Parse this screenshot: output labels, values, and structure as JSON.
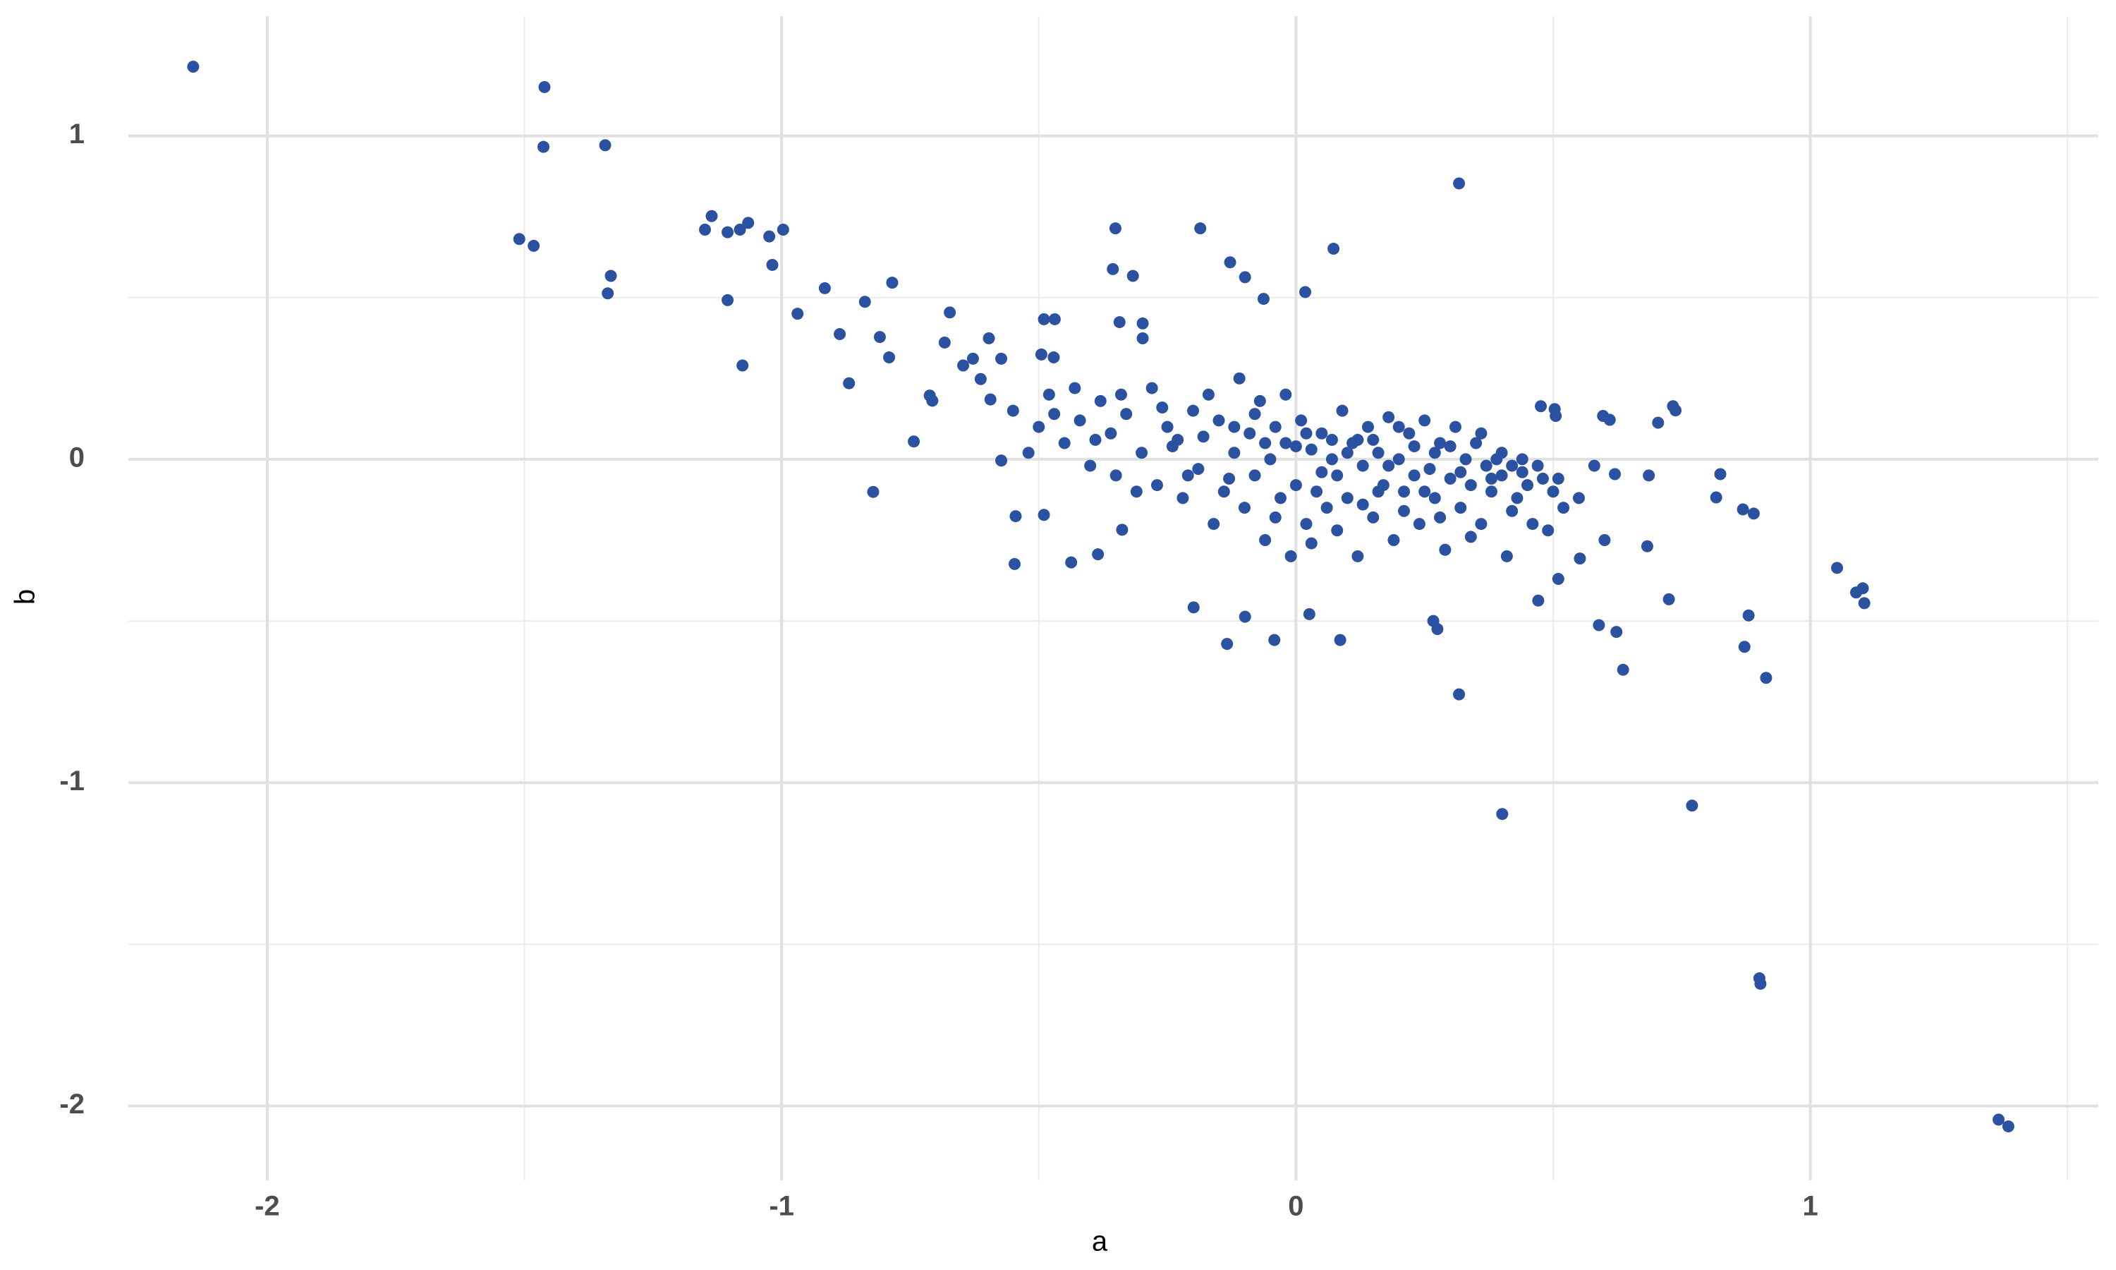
{
  "chart_data": {
    "type": "scatter",
    "x_label": "a",
    "y_label": "b",
    "color": "#2b52a0",
    "grid": true,
    "xlim": [
      -2.27,
      1.56
    ],
    "ylim": [
      -2.23,
      1.37
    ],
    "xticks": [
      -2,
      -1,
      0,
      1
    ],
    "yticks": [
      -2,
      -1,
      0,
      1
    ],
    "xminor": [
      -1.5,
      -0.5,
      0.5,
      1.5
    ],
    "yminor": [
      -1.5,
      -0.5,
      0.5
    ],
    "x": [
      -2.144,
      -1.461,
      -1.463,
      -1.343,
      -1.51,
      -1.482,
      -1.332,
      -1.338,
      -1.136,
      -1.149,
      -1.105,
      -1.081,
      -1.065,
      -1.024,
      -0.997,
      -1.018,
      -1.105,
      -1.076,
      -0.969,
      -0.916,
      -0.838,
      -0.785,
      -0.887,
      -0.869,
      -0.809,
      -0.791,
      -0.743,
      -0.822,
      -0.673,
      -0.683,
      -0.351,
      -0.186,
      -0.356,
      -0.317,
      0.317,
      0.073,
      -0.128,
      -0.099,
      0.018,
      -0.063,
      -0.49,
      -0.469,
      -0.343,
      -0.298,
      -0.298,
      -0.495,
      -0.471,
      0.317,
      0.401,
      0.77,
      0.901,
      0.903,
      1.366,
      1.385,
      1.052,
      1.089,
      1.102,
      1.105,
      0.914,
      0.88,
      0.872,
      0.89,
      0.869,
      0.825,
      0.817,
      0.725,
      0.683,
      0.686,
      0.62,
      0.589,
      0.623,
      0.636,
      0.704,
      0.733,
      0.738,
      0.597,
      0.61,
      0.471,
      0.51,
      0.552,
      0.476,
      0.503,
      0.505,
      -0.134,
      -0.042,
      0.086,
      -0.199,
      -0.099,
      0.026,
      0.275,
      0.267,
      -0.547,
      -0.545,
      -0.49,
      -0.437,
      -0.385,
      -0.338,
      -0.573,
      -0.594,
      -0.613,
      -0.647,
      -0.597,
      -0.628,
      -0.707,
      -0.712,
      -0.573,
      -0.55,
      -0.5,
      -0.48,
      -0.45,
      -0.42,
      -0.4,
      -0.38,
      -0.36,
      -0.35,
      -0.33,
      -0.3,
      -0.28,
      -0.27,
      -0.25,
      -0.24,
      -0.22,
      -0.2,
      -0.19,
      -0.18,
      -0.16,
      -0.15,
      -0.14,
      -0.12,
      -0.11,
      -0.1,
      -0.09,
      -0.08,
      -0.07,
      -0.06,
      -0.05,
      -0.04,
      -0.03,
      -0.02,
      -0.01,
      0,
      0.01,
      0.02,
      0.03,
      0.04,
      0.05,
      0.06,
      0.07,
      0.08,
      0.09,
      0.1,
      0.11,
      0.12,
      0.13,
      0.14,
      0.15,
      0.16,
      0.17,
      0.18,
      0.19,
      0.2,
      0.21,
      0.22,
      0.23,
      0.24,
      0.25,
      0.26,
      0.27,
      0.28,
      0.29,
      0.3,
      0.31,
      0.32,
      0.33,
      0.34,
      0.35,
      0.36,
      0.37,
      0.38,
      0.39,
      0.4,
      0.41,
      0.42,
      0.43,
      0.44,
      0.45,
      0.46,
      0.48,
      0.5,
      0.52,
      -0.52,
      -0.47,
      -0.43,
      -0.39,
      -0.34,
      -0.31,
      -0.26,
      -0.23,
      -0.21,
      -0.17,
      -0.13,
      -0.12,
      -0.08,
      -0.06,
      -0.04,
      -0.02,
      0,
      0.02,
      0.03,
      0.05,
      0.07,
      0.08,
      0.1,
      0.12,
      0.13,
      0.15,
      0.16,
      0.18,
      0.2,
      0.21,
      0.23,
      0.25,
      0.27,
      0.28,
      0.3,
      0.32,
      0.34,
      0.36,
      0.38,
      0.4,
      0.42,
      0.44,
      0.47,
      0.49,
      0.51,
      0.55,
      0.58,
      0.6
    ],
    "values": [
      1.214,
      1.151,
      0.966,
      0.971,
      0.681,
      0.66,
      0.567,
      0.513,
      0.752,
      0.71,
      0.702,
      0.71,
      0.731,
      0.689,
      0.71,
      0.601,
      0.492,
      0.29,
      0.45,
      0.529,
      0.487,
      0.546,
      0.387,
      0.235,
      0.378,
      0.315,
      0.055,
      -0.101,
      0.454,
      0.361,
      0.714,
      0.714,
      0.588,
      0.567,
      0.853,
      0.651,
      0.609,
      0.563,
      0.517,
      0.496,
      0.433,
      0.433,
      0.424,
      0.42,
      0.374,
      0.324,
      0.315,
      -0.727,
      -1.097,
      -1.071,
      -1.605,
      -1.622,
      -2.042,
      -2.063,
      -0.336,
      -0.412,
      -0.399,
      -0.445,
      -0.676,
      -0.483,
      -0.58,
      -0.168,
      -0.155,
      -0.046,
      -0.118,
      -0.433,
      -0.269,
      -0.05,
      -0.046,
      -0.513,
      -0.534,
      -0.651,
      0.113,
      0.164,
      0.151,
      0.134,
      0.122,
      -0.437,
      -0.37,
      -0.307,
      0.164,
      0.155,
      0.134,
      -0.571,
      -0.559,
      -0.559,
      -0.458,
      -0.487,
      -0.479,
      -0.525,
      -0.5,
      -0.324,
      -0.176,
      -0.172,
      -0.319,
      -0.294,
      -0.218,
      -0.004,
      0.185,
      0.248,
      0.29,
      0.374,
      0.311,
      0.181,
      0.197,
      0.311,
      0.15,
      0.1,
      0.2,
      0.05,
      0.12,
      -0.02,
      0.18,
      0.08,
      -0.05,
      0.14,
      0.02,
      0.22,
      -0.08,
      0.1,
      0.04,
      -0.12,
      0.15,
      -0.03,
      0.07,
      -0.2,
      0.12,
      -0.1,
      0.02,
      0.25,
      -0.15,
      0.08,
      -0.05,
      0.18,
      -0.25,
      0.0,
      0.1,
      -0.12,
      0.05,
      -0.3,
      -0.08,
      0.12,
      -0.2,
      0.03,
      -0.1,
      0.08,
      -0.15,
      0.0,
      -0.05,
      0.15,
      -0.12,
      0.05,
      -0.3,
      -0.02,
      0.1,
      -0.18,
      0.02,
      -0.08,
      0.13,
      -0.25,
      0.0,
      -0.1,
      0.08,
      -0.05,
      -0.2,
      0.12,
      -0.03,
      -0.12,
      0.05,
      -0.28,
      -0.06,
      0.1,
      -0.15,
      0.0,
      -0.08,
      0.05,
      -0.2,
      -0.02,
      -0.1,
      0.0,
      -0.05,
      -0.3,
      -0.02,
      -0.12,
      -0.04,
      -0.08,
      -0.2,
      -0.06,
      -0.1,
      -0.15,
      0.02,
      0.14,
      0.22,
      0.06,
      0.2,
      -0.1,
      0.16,
      0.06,
      -0.05,
      0.2,
      -0.06,
      0.1,
      0.14,
      0.05,
      -0.18,
      0.2,
      0.04,
      0.08,
      -0.26,
      -0.04,
      0.06,
      -0.22,
      0.02,
      0.06,
      -0.14,
      0.06,
      -0.1,
      -0.02,
      0.1,
      -0.16,
      0.04,
      -0.1,
      0.02,
      -0.18,
      0.04,
      -0.04,
      -0.24,
      0.08,
      -0.06,
      0.02,
      -0.16,
      0.0,
      -0.02,
      -0.22,
      -0.06,
      -0.12,
      -0.02,
      -0.25
    ]
  }
}
